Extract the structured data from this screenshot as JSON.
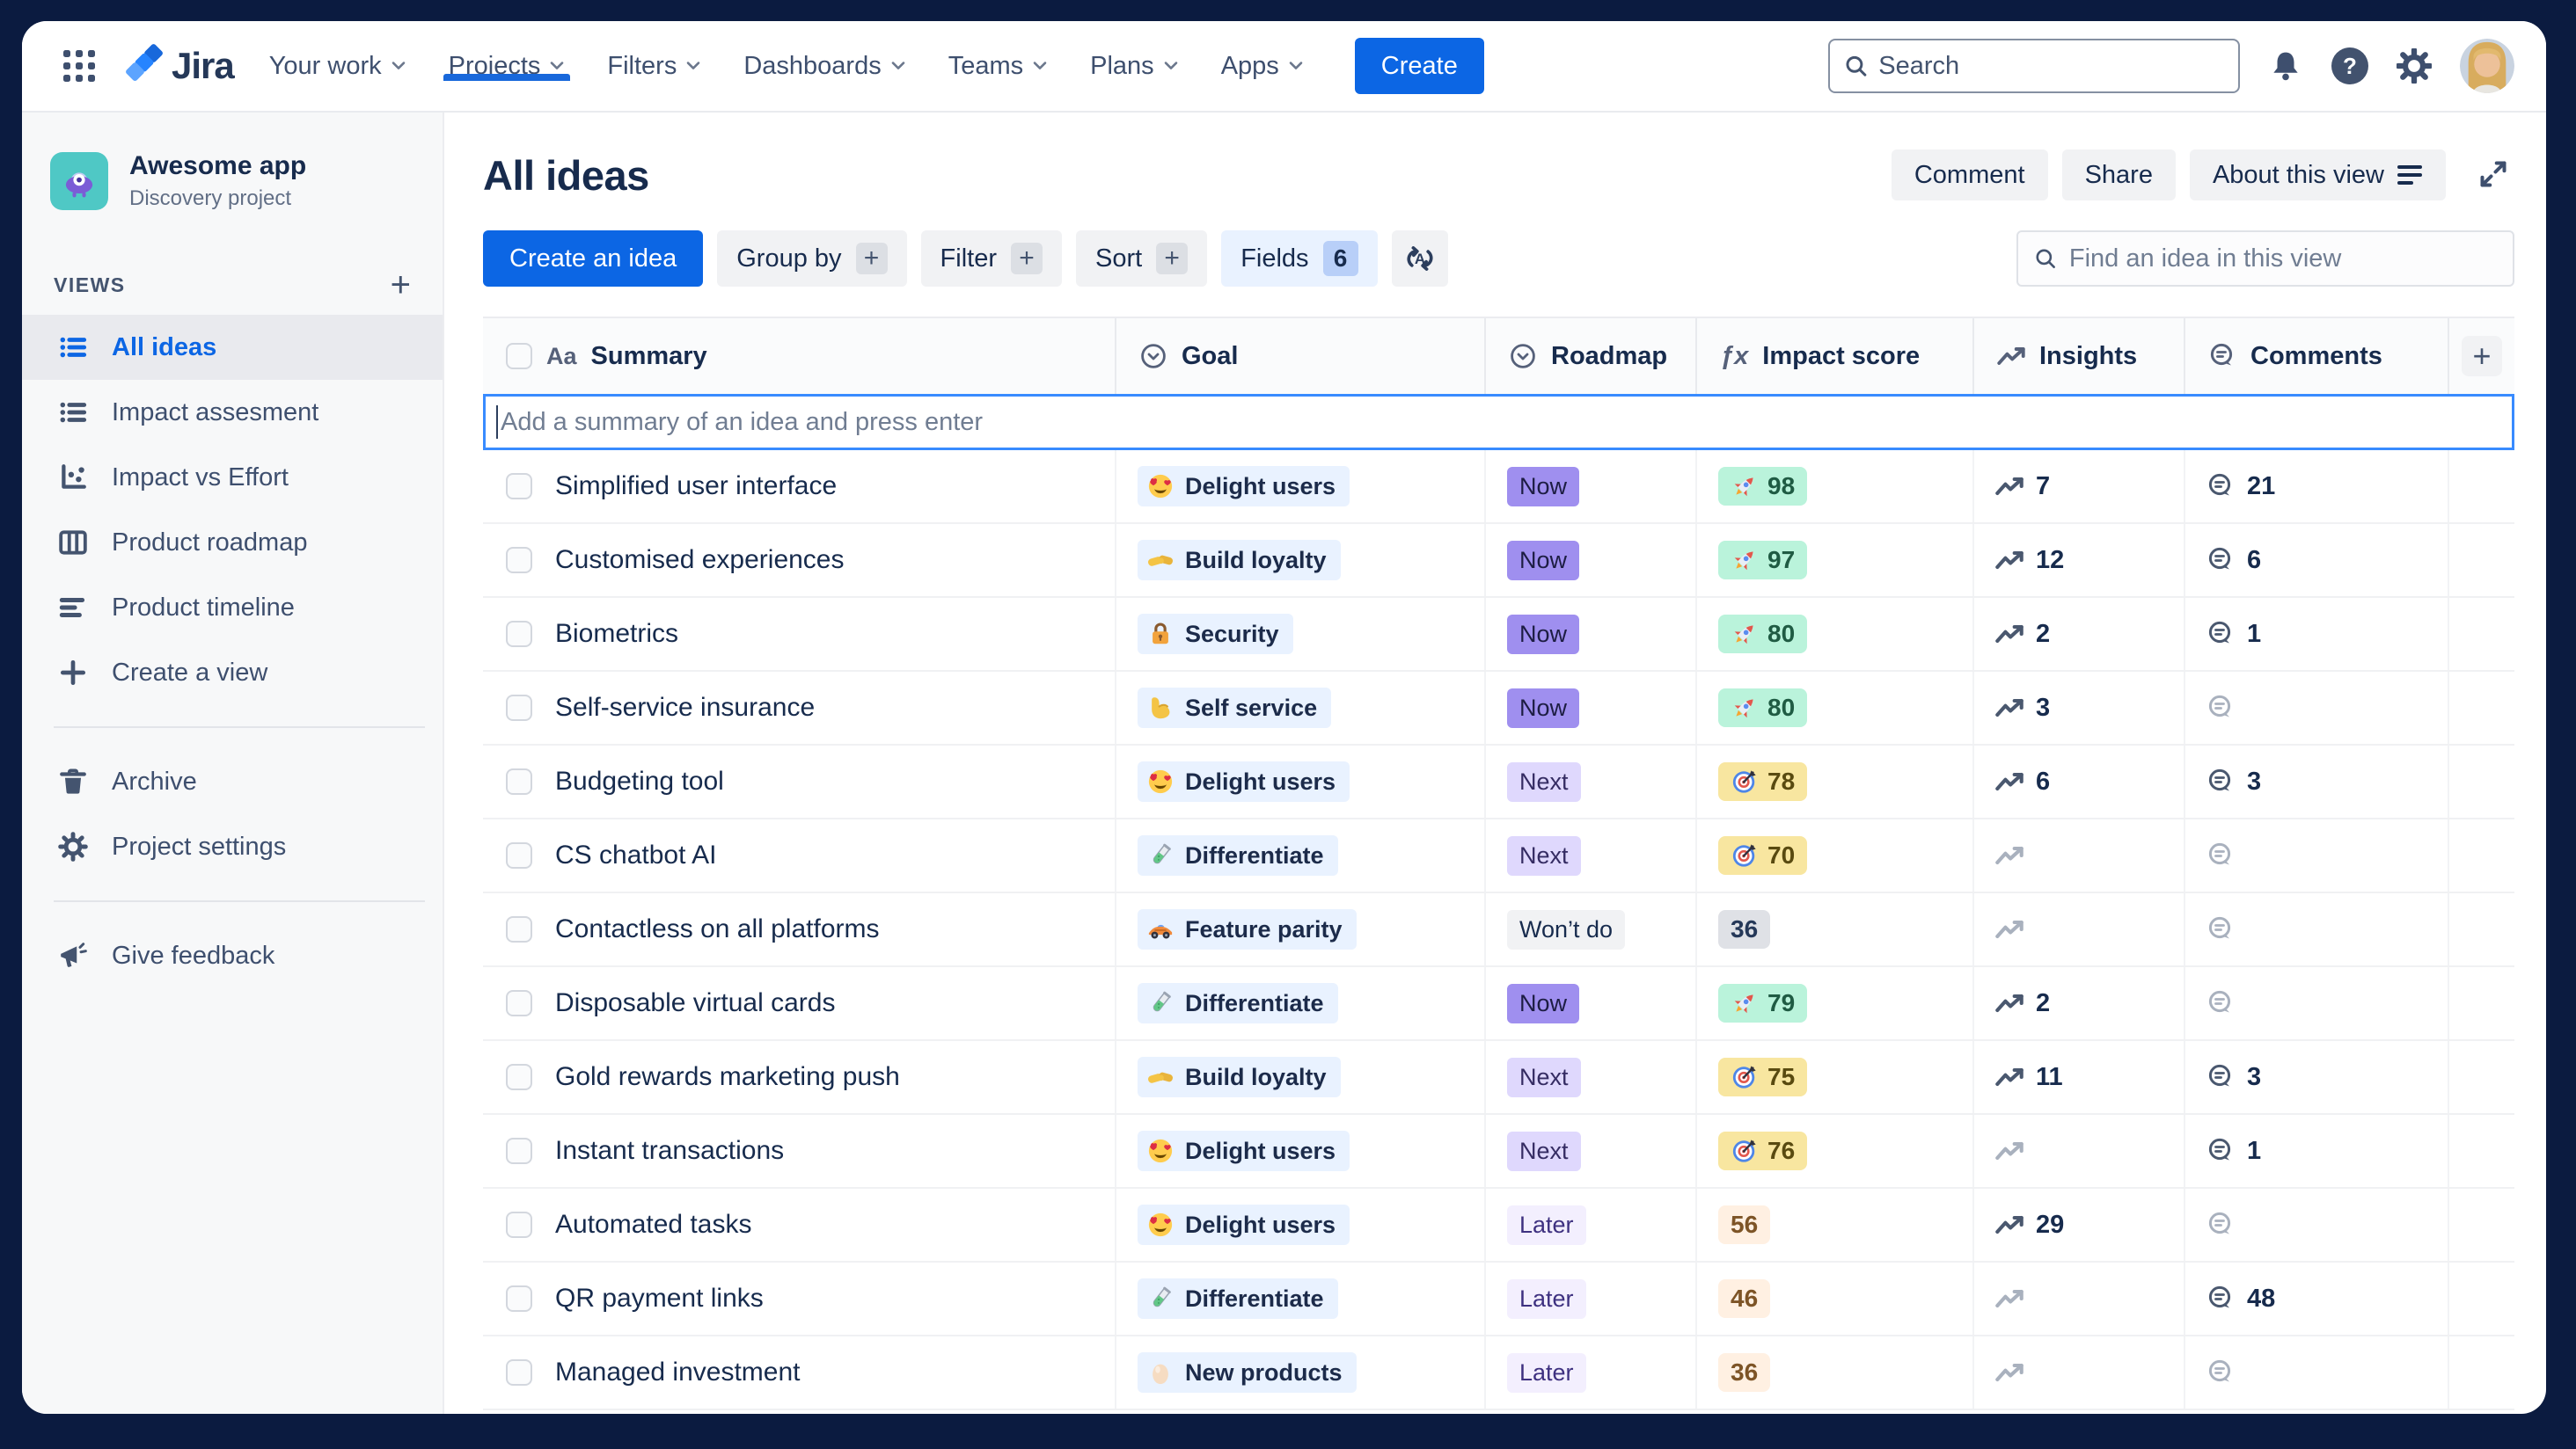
{
  "topbar": {
    "product": "Jira",
    "nav": [
      {
        "label": "Your work"
      },
      {
        "label": "Projects",
        "active": true
      },
      {
        "label": "Filters"
      },
      {
        "label": "Dashboards"
      },
      {
        "label": "Teams"
      },
      {
        "label": "Plans"
      },
      {
        "label": "Apps"
      }
    ],
    "create_label": "Create",
    "search_placeholder": "Search"
  },
  "sidebar": {
    "project": {
      "name": "Awesome app",
      "type": "Discovery project"
    },
    "views_label": "VIEWS",
    "views": [
      {
        "label": "All ideas",
        "icon": "list",
        "active": true
      },
      {
        "label": "Impact assesment",
        "icon": "list"
      },
      {
        "label": "Impact vs Effort",
        "icon": "scatter"
      },
      {
        "label": "Product roadmap",
        "icon": "board"
      },
      {
        "label": "Product timeline",
        "icon": "timeline"
      },
      {
        "label": "Create a view",
        "icon": "plus"
      }
    ],
    "tools": [
      {
        "label": "Archive",
        "icon": "trash"
      },
      {
        "label": "Project settings",
        "icon": "gear"
      }
    ],
    "footer": [
      {
        "label": "Give feedback",
        "icon": "megaphone"
      }
    ]
  },
  "main": {
    "title": "All ideas",
    "actions": {
      "comment": "Comment",
      "share": "Share",
      "about": "About this view"
    },
    "toolbar": {
      "create": "Create an idea",
      "group_by": "Group by",
      "filter": "Filter",
      "sort": "Sort",
      "fields": "Fields",
      "fields_count": "6"
    },
    "find_placeholder": "Find an idea in this view",
    "add_row_placeholder": "Add a summary of an idea and press enter"
  },
  "table": {
    "columns": [
      {
        "label": "Summary",
        "icon": "text"
      },
      {
        "label": "Goal",
        "icon": "select"
      },
      {
        "label": "Roadmap",
        "icon": "select"
      },
      {
        "label": "Impact score",
        "icon": "formula"
      },
      {
        "label": "Insights",
        "icon": "trend"
      },
      {
        "label": "Comments",
        "icon": "comment"
      }
    ],
    "rows": [
      {
        "summary": "Simplified user interface",
        "goal": {
          "label": "Delight users",
          "icon": "heart-eyes"
        },
        "roadmap": {
          "label": "Now",
          "variant": "now"
        },
        "impact": {
          "value": "98",
          "icon": "rocket",
          "variant": "green"
        },
        "insights": {
          "count": "7"
        },
        "comments": {
          "count": "21"
        }
      },
      {
        "summary": "Customised experiences",
        "goal": {
          "label": "Build loyalty",
          "icon": "handshake"
        },
        "roadmap": {
          "label": "Now",
          "variant": "now"
        },
        "impact": {
          "value": "97",
          "icon": "rocket",
          "variant": "green"
        },
        "insights": {
          "count": "12"
        },
        "comments": {
          "count": "6"
        }
      },
      {
        "summary": "Biometrics",
        "goal": {
          "label": "Security",
          "icon": "lock"
        },
        "roadmap": {
          "label": "Now",
          "variant": "now"
        },
        "impact": {
          "value": "80",
          "icon": "rocket",
          "variant": "green"
        },
        "insights": {
          "count": "2"
        },
        "comments": {
          "count": "1"
        }
      },
      {
        "summary": "Self-service insurance",
        "goal": {
          "label": "Self service",
          "icon": "flex"
        },
        "roadmap": {
          "label": "Now",
          "variant": "now"
        },
        "impact": {
          "value": "80",
          "icon": "rocket",
          "variant": "green"
        },
        "insights": {
          "count": "3"
        },
        "comments": {
          "count": null
        }
      },
      {
        "summary": "Budgeting tool",
        "goal": {
          "label": "Delight users",
          "icon": "heart-eyes"
        },
        "roadmap": {
          "label": "Next",
          "variant": "next"
        },
        "impact": {
          "value": "78",
          "icon": "target",
          "variant": "yellow"
        },
        "insights": {
          "count": "6"
        },
        "comments": {
          "count": "3"
        }
      },
      {
        "summary": "CS chatbot AI",
        "goal": {
          "label": "Differentiate",
          "icon": "test-tube"
        },
        "roadmap": {
          "label": "Next",
          "variant": "next"
        },
        "impact": {
          "value": "70",
          "icon": "target",
          "variant": "yellow"
        },
        "insights": {
          "count": null
        },
        "comments": {
          "count": null
        }
      },
      {
        "summary": "Contactless on all platforms",
        "goal": {
          "label": "Feature parity",
          "icon": "race-car"
        },
        "roadmap": {
          "label": "Won’t do",
          "variant": "wontdo"
        },
        "impact": {
          "value": "36",
          "icon": null,
          "variant": "gray"
        },
        "insights": {
          "count": null
        },
        "comments": {
          "count": null
        }
      },
      {
        "summary": "Disposable virtual cards",
        "goal": {
          "label": "Differentiate",
          "icon": "test-tube"
        },
        "roadmap": {
          "label": "Now",
          "variant": "now"
        },
        "impact": {
          "value": "79",
          "icon": "rocket",
          "variant": "green"
        },
        "insights": {
          "count": "2"
        },
        "comments": {
          "count": null
        }
      },
      {
        "summary": "Gold rewards marketing push",
        "goal": {
          "label": "Build loyalty",
          "icon": "handshake"
        },
        "roadmap": {
          "label": "Next",
          "variant": "next"
        },
        "impact": {
          "value": "75",
          "icon": "target",
          "variant": "yellow"
        },
        "insights": {
          "count": "11"
        },
        "comments": {
          "count": "3"
        }
      },
      {
        "summary": "Instant transactions",
        "goal": {
          "label": "Delight users",
          "icon": "heart-eyes"
        },
        "roadmap": {
          "label": "Next",
          "variant": "next"
        },
        "impact": {
          "value": "76",
          "icon": "target",
          "variant": "yellow"
        },
        "insights": {
          "count": null
        },
        "comments": {
          "count": "1"
        }
      },
      {
        "summary": "Automated tasks",
        "goal": {
          "label": "Delight users",
          "icon": "heart-eyes"
        },
        "roadmap": {
          "label": "Later",
          "variant": "later"
        },
        "impact": {
          "value": "56",
          "icon": null,
          "variant": "peach"
        },
        "insights": {
          "count": "29"
        },
        "comments": {
          "count": null
        }
      },
      {
        "summary": "QR payment links",
        "goal": {
          "label": "Differentiate",
          "icon": "test-tube"
        },
        "roadmap": {
          "label": "Later",
          "variant": "later"
        },
        "impact": {
          "value": "46",
          "icon": null,
          "variant": "peach"
        },
        "insights": {
          "count": null
        },
        "comments": {
          "count": "48"
        }
      },
      {
        "summary": "Managed investment",
        "goal": {
          "label": "New products",
          "icon": "egg"
        },
        "roadmap": {
          "label": "Later",
          "variant": "later"
        },
        "impact": {
          "value": "36",
          "icon": null,
          "variant": "peach"
        },
        "insights": {
          "count": null
        },
        "comments": {
          "count": null
        }
      }
    ]
  },
  "colors": {
    "accent_blue": "#0C66E4",
    "brand_navy": "#0B1B40",
    "goal_chip_bg": "#E9F2FF",
    "roadmap_now": "#9F8FEF",
    "roadmap_next": "#DFD8FD",
    "roadmap_later": "#F3EFFE",
    "roadmap_wontdo": "#F1F2F4",
    "score_green": "#BAF3DB",
    "score_yellow": "#F8E6A0",
    "score_gray": "#DFE1E6",
    "score_peach": "#FFF0E2"
  }
}
